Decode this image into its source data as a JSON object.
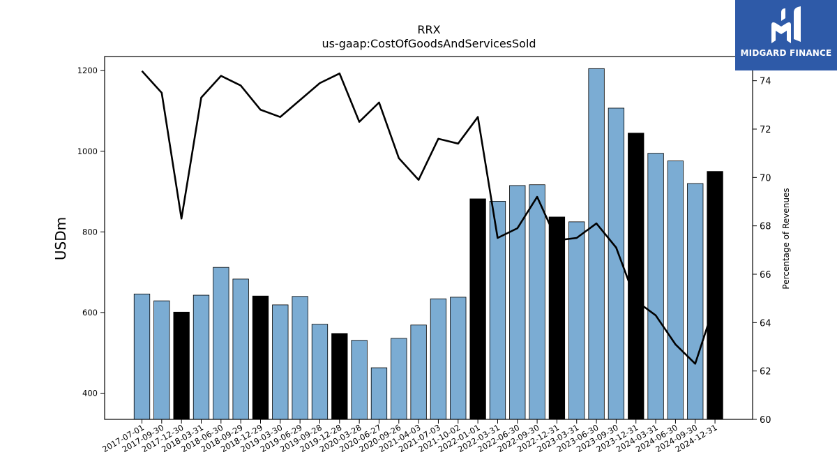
{
  "chart_data": {
    "type": "bar",
    "title": "RRX",
    "subtitle": "us-gaap:CostOfGoodsAndServicesSold",
    "ylabel": "USDm",
    "y2label": "Percentage of Revenues",
    "ylim": [
      335,
      1235
    ],
    "y2lim": [
      60,
      75
    ],
    "yticks": [
      400,
      600,
      800,
      1000,
      1200
    ],
    "y2ticks": [
      60,
      62,
      64,
      66,
      68,
      70,
      72,
      74
    ],
    "categories": [
      "2017-07-01",
      "2017-09-30",
      "2017-12-30",
      "2018-03-31",
      "2018-06-30",
      "2018-09-29",
      "2018-12-29",
      "2019-03-30",
      "2019-06-29",
      "2019-09-28",
      "2019-12-28",
      "2020-03-28",
      "2020-06-27",
      "2020-09-26",
      "2021-04-03",
      "2021-07-03",
      "2021-10-02",
      "2022-01-01",
      "2022-03-31",
      "2022-06-30",
      "2022-09-30",
      "2022-12-31",
      "2023-03-31",
      "2023-06-30",
      "2023-09-30",
      "2023-12-31",
      "2024-03-31",
      "2024-06-30",
      "2024-09-30",
      "2024-12-31"
    ],
    "series": [
      {
        "kind": "bar",
        "values": [
          646,
          629,
          601,
          643,
          712,
          683,
          641,
          619,
          640,
          571,
          548,
          531,
          463,
          536,
          569,
          634,
          638,
          882,
          876,
          915,
          917,
          837,
          825,
          1205,
          1107,
          1045,
          995,
          976,
          920,
          950
        ],
        "highlight": [
          false,
          false,
          true,
          false,
          false,
          false,
          true,
          false,
          false,
          false,
          true,
          false,
          false,
          false,
          false,
          false,
          false,
          true,
          false,
          false,
          false,
          true,
          false,
          false,
          false,
          true,
          false,
          false,
          false,
          true
        ]
      },
      {
        "kind": "line",
        "axis": "right",
        "values": [
          74.4,
          73.5,
          68.3,
          73.3,
          74.2,
          73.8,
          72.8,
          72.5,
          73.2,
          73.9,
          74.3,
          72.3,
          73.1,
          70.8,
          69.9,
          71.6,
          71.4,
          72.5,
          67.5,
          67.9,
          69.2,
          67.4,
          67.5,
          68.1,
          67.1,
          64.9,
          64.3,
          63.1,
          62.3,
          64.8
        ]
      }
    ],
    "colors": {
      "bar": "#7bacd3",
      "bar_highlight": "#000000",
      "line": "#000000"
    },
    "grid": false
  },
  "logo": {
    "text": "MIDGARD FINANCE"
  }
}
